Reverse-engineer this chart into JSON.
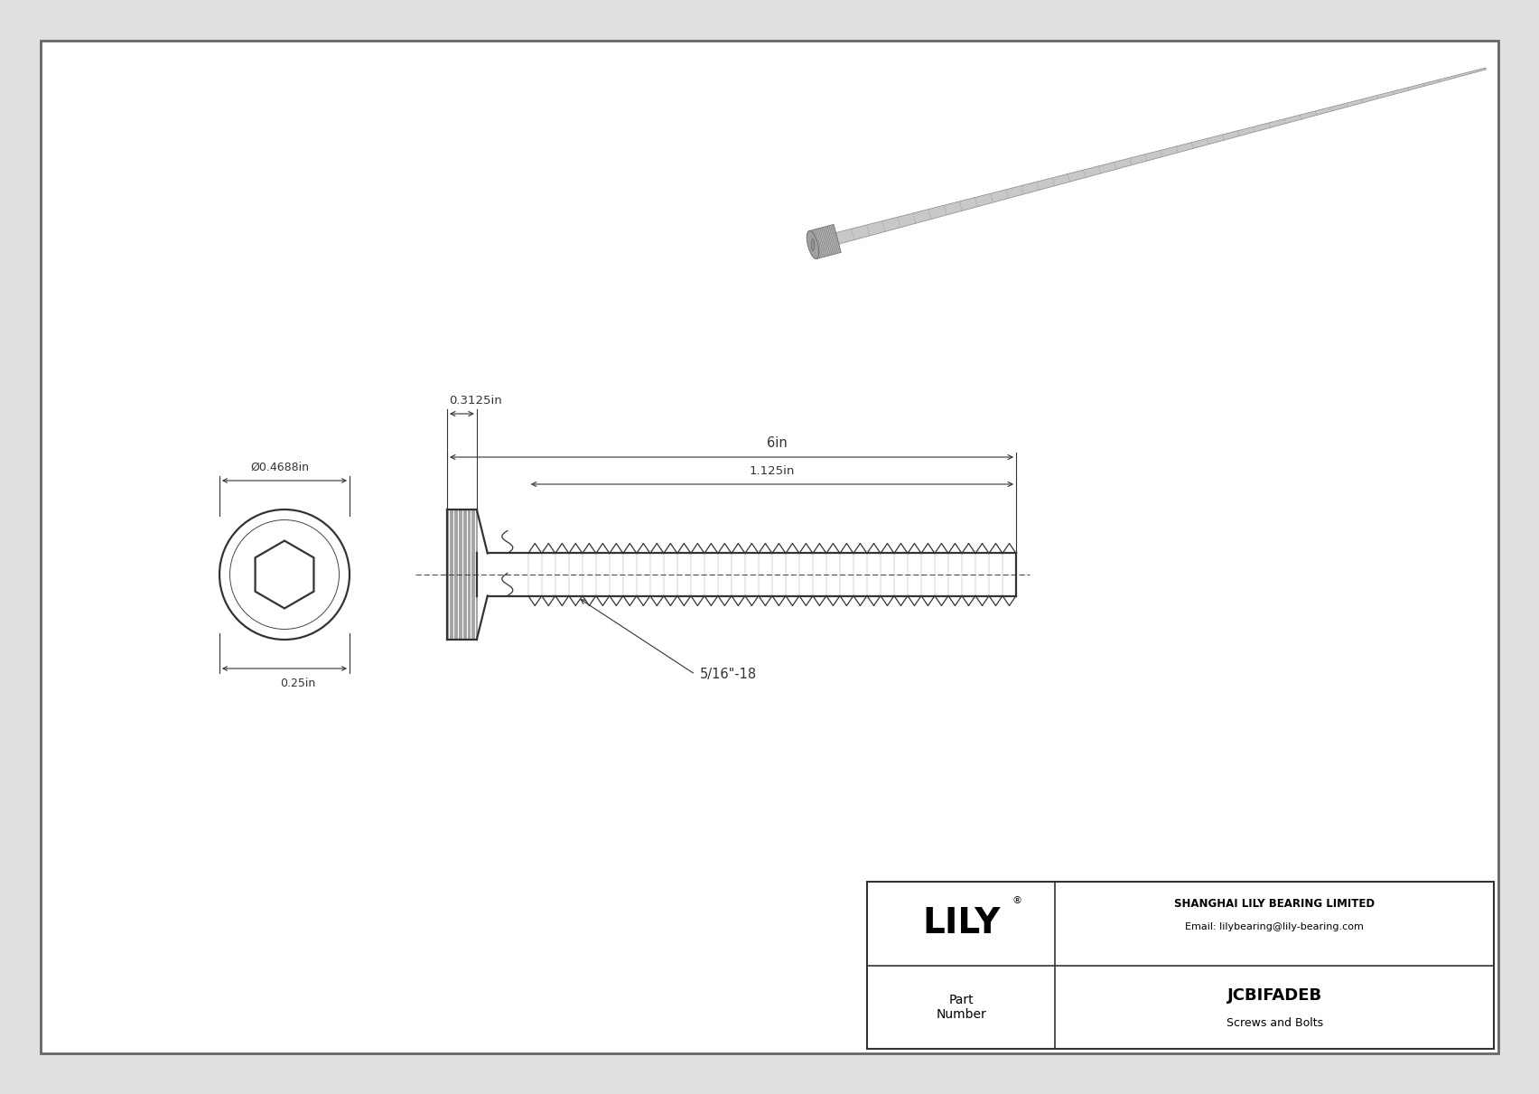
{
  "bg_color": "#e0e0e0",
  "drawing_bg": "#f5f5f5",
  "border_color": "#555555",
  "line_color": "#333333",
  "dim_diameter": "Ø0.4688in",
  "dim_width": "0.25in",
  "dim_head_length": "0.3125in",
  "dim_total_length": "6in",
  "dim_thread_length": "1.125in",
  "dim_thread_spec": "5/16\"-18",
  "company": "SHANGHAI LILY BEARING LIMITED",
  "email": "Email: lilybearing@lily-bearing.com",
  "part_label": "Part\nNumber",
  "lily_text": "LILY",
  "title": "JCBIFADEB",
  "subtitle": "Screws and Bolts",
  "fig_w": 16.84,
  "fig_h": 11.91
}
